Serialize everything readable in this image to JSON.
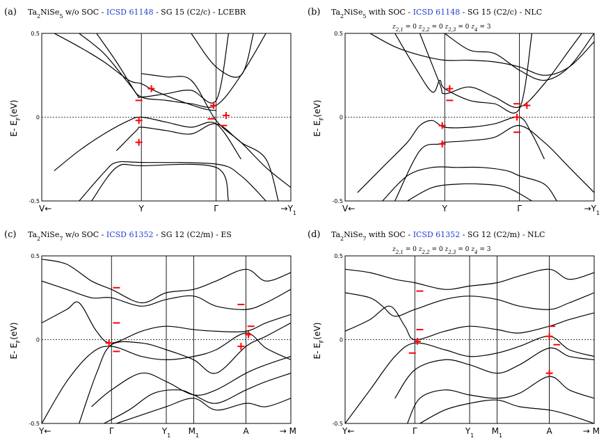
{
  "figure": {
    "y_axis_label": "E- E",
    "y_axis_sub": "F",
    "y_axis_unit": "(eV)"
  },
  "chart_data": [
    {
      "type": "line",
      "panel": "(a)",
      "title": {
        "pre": "Ta2NiSe5 w/o SOC - ",
        "link": "ICSD 61148",
        "post": " - SG 15 (C2/c) - LCEBR"
      },
      "subtitle": "",
      "ylim": [
        -0.5,
        0.5
      ],
      "yticks": [
        "0.5",
        "0",
        "-0.5"
      ],
      "kpath": [
        {
          "label": "V←",
          "x": 0
        },
        {
          "label": "Y",
          "x": 0.4
        },
        {
          "label": "Γ",
          "x": 0.7
        },
        {
          "label": "→Y₁",
          "x": 1.0
        }
      ],
      "series": [
        {
          "name": "band 1",
          "x": [
            0.05,
            0.15,
            0.25,
            0.35,
            0.4,
            0.45,
            0.55,
            0.65,
            0.7
          ],
          "y": [
            0.5,
            0.42,
            0.33,
            0.22,
            0.2,
            0.16,
            0.1,
            0.05,
            0.04
          ]
        },
        {
          "name": "band 2",
          "x": [
            0.15,
            0.25,
            0.35,
            0.4,
            0.5,
            0.6,
            0.7,
            0.8,
            0.9
          ],
          "y": [
            0.5,
            0.38,
            0.2,
            0.12,
            0.1,
            0.08,
            0.07,
            0.25,
            0.5
          ]
        },
        {
          "name": "band 3",
          "x": [
            0.22,
            0.3,
            0.38,
            0.4,
            0.5,
            0.6,
            0.7,
            0.75
          ],
          "y": [
            0.5,
            0.33,
            0.14,
            0.12,
            0.14,
            0.16,
            0.1,
            0.5
          ]
        },
        {
          "name": "band 4",
          "x": [
            0.4,
            0.5,
            0.6,
            0.7,
            0.8,
            0.9,
            1.0
          ],
          "y": [
            0.26,
            0.24,
            0.22,
            -0.02,
            -0.15,
            -0.3,
            -0.42
          ]
        },
        {
          "name": "band 5",
          "x": [
            0.05,
            0.15,
            0.25,
            0.35,
            0.4,
            0.5,
            0.6,
            0.7,
            0.8
          ],
          "y": [
            -0.32,
            -0.2,
            -0.1,
            -0.02,
            0.0,
            -0.03,
            -0.06,
            -0.04,
            -0.25
          ]
        },
        {
          "name": "band 6",
          "x": [
            0.3,
            0.38,
            0.4,
            0.5,
            0.6,
            0.7,
            0.8,
            0.9,
            0.95
          ],
          "y": [
            -0.2,
            -0.08,
            -0.06,
            -0.08,
            -0.1,
            -0.04,
            -0.15,
            -0.25,
            -0.5
          ]
        },
        {
          "name": "band 7",
          "x": [
            0.15,
            0.25,
            0.3,
            0.4,
            0.7,
            0.8,
            0.9
          ],
          "y": [
            -0.5,
            -0.33,
            -0.27,
            -0.27,
            -0.28,
            -0.35,
            -0.5
          ]
        },
        {
          "name": "band 8",
          "x": [
            0.2,
            0.3,
            0.4,
            0.7,
            0.75
          ],
          "y": [
            -0.5,
            -0.3,
            -0.29,
            -0.3,
            -0.5
          ]
        },
        {
          "name": "band 9",
          "x": [
            0.6,
            0.7,
            0.8,
            0.85
          ],
          "y": [
            0.5,
            0.3,
            0.25,
            0.5
          ]
        }
      ],
      "parity": [
        {
          "sign": "+",
          "x": 0.44,
          "y": 0.17
        },
        {
          "sign": "−",
          "x": 0.39,
          "y": 0.1
        },
        {
          "sign": "+",
          "x": 0.69,
          "y": 0.07
        },
        {
          "sign": "+",
          "x": 0.74,
          "y": 0.01
        },
        {
          "sign": "−",
          "x": 0.68,
          "y": -0.01
        },
        {
          "sign": "−",
          "x": 0.73,
          "y": -0.05
        },
        {
          "sign": "+",
          "x": 0.39,
          "y": -0.02
        },
        {
          "sign": "+",
          "x": 0.39,
          "y": -0.15
        }
      ]
    },
    {
      "type": "line",
      "panel": "(b)",
      "title": {
        "pre": "Ta2NiSe5 with SOC - ",
        "link": "ICSD 61148",
        "post": " - SG 15 (C2/c) - NLC"
      },
      "subtitle": "z2,1 = 0   z2,2 = 0   z2,3 = 0   z4 = 3",
      "ylim": [
        -0.5,
        0.5
      ],
      "yticks": [
        "0.5",
        "0",
        "-0.5"
      ],
      "kpath": [
        {
          "label": "V←",
          "x": 0
        },
        {
          "label": "Y",
          "x": 0.4
        },
        {
          "label": "Γ",
          "x": 0.7
        },
        {
          "label": "→Y₁",
          "x": 1.0
        }
      ],
      "series": [
        {
          "name": "band 1",
          "x": [
            0.2,
            0.28,
            0.35,
            0.38,
            0.4,
            0.5,
            0.6,
            0.7,
            0.75
          ],
          "y": [
            0.5,
            0.3,
            0.15,
            0.22,
            0.17,
            0.1,
            0.08,
            0.05,
            0.5
          ]
        },
        {
          "name": "band 2",
          "x": [
            0.3,
            0.38,
            0.4,
            0.5,
            0.6,
            0.7,
            0.8,
            0.9,
            0.95
          ],
          "y": [
            0.5,
            0.2,
            0.14,
            0.18,
            0.12,
            0.06,
            0.2,
            0.4,
            0.5
          ]
        },
        {
          "name": "band 3",
          "x": [
            0.4,
            0.5,
            0.6,
            0.7,
            0.8,
            0.9,
            1.0
          ],
          "y": [
            0.5,
            0.4,
            0.38,
            0.28,
            0.22,
            0.3,
            0.5
          ]
        },
        {
          "name": "band 4",
          "x": [
            0.1,
            0.2,
            0.3,
            0.4,
            0.5,
            0.6,
            0.7,
            0.8,
            0.9,
            1.0
          ],
          "y": [
            0.5,
            0.42,
            0.37,
            0.34,
            0.34,
            0.33,
            0.3,
            0.25,
            0.3,
            0.45
          ]
        },
        {
          "name": "band 5",
          "x": [
            0.05,
            0.15,
            0.25,
            0.3,
            0.35,
            0.4,
            0.5,
            0.6,
            0.7,
            0.75,
            0.8
          ],
          "y": [
            -0.45,
            -0.3,
            -0.15,
            -0.05,
            -0.02,
            -0.06,
            -0.06,
            -0.04,
            0.0,
            -0.1,
            -0.25
          ]
        },
        {
          "name": "band 6",
          "x": [
            0.2,
            0.3,
            0.38,
            0.4,
            0.5,
            0.6,
            0.7,
            0.8,
            0.9,
            1.0
          ],
          "y": [
            -0.5,
            -0.2,
            -0.16,
            -0.15,
            -0.14,
            -0.12,
            -0.05,
            -0.15,
            -0.3,
            -0.45
          ]
        },
        {
          "name": "band 7",
          "x": [
            0.15,
            0.25,
            0.35,
            0.45,
            0.55,
            0.65,
            0.7,
            0.8,
            0.85
          ],
          "y": [
            -0.5,
            -0.35,
            -0.3,
            -0.3,
            -0.3,
            -0.32,
            -0.35,
            -0.4,
            -0.5
          ]
        },
        {
          "name": "band 8",
          "x": [
            0.25,
            0.35,
            0.45,
            0.55,
            0.65,
            0.75
          ],
          "y": [
            -0.5,
            -0.42,
            -0.4,
            -0.4,
            -0.42,
            -0.5
          ]
        }
      ],
      "parity": [
        {
          "sign": "+",
          "x": 0.42,
          "y": 0.17
        },
        {
          "sign": "−",
          "x": 0.42,
          "y": 0.1
        },
        {
          "sign": "−",
          "x": 0.69,
          "y": 0.08
        },
        {
          "sign": "+",
          "x": 0.73,
          "y": 0.07
        },
        {
          "sign": "+",
          "x": 0.69,
          "y": 0.0
        },
        {
          "sign": "−",
          "x": 0.69,
          "y": -0.09
        },
        {
          "sign": "+",
          "x": 0.39,
          "y": -0.05
        },
        {
          "sign": "+",
          "x": 0.39,
          "y": -0.16
        }
      ]
    },
    {
      "type": "line",
      "panel": "(c)",
      "title": {
        "pre": "Ta2NiSe7 w/o SOC - ",
        "link": "ICSD 61352",
        "post": " - SG 12 (C2/m) - ES"
      },
      "subtitle": "",
      "ylim": [
        -0.5,
        0.5
      ],
      "yticks": [
        "0.5",
        "0",
        "-0.5"
      ],
      "kpath": [
        {
          "label": "Y←",
          "x": 0
        },
        {
          "label": "Γ",
          "x": 0.28
        },
        {
          "label": "Y₁",
          "x": 0.5
        },
        {
          "label": "M₁",
          "x": 0.61
        },
        {
          "label": "A",
          "x": 0.82
        },
        {
          "label": "→ M",
          "x": 1.0
        }
      ],
      "series": [
        {
          "name": "band 1",
          "x": [
            0.0,
            0.1,
            0.2,
            0.28,
            0.4,
            0.5,
            0.61,
            0.7,
            0.82,
            0.9,
            1.0
          ],
          "y": [
            0.48,
            0.45,
            0.35,
            0.3,
            0.22,
            0.28,
            0.3,
            0.35,
            0.42,
            0.35,
            0.4
          ]
        },
        {
          "name": "band 2",
          "x": [
            0.0,
            0.1,
            0.2,
            0.28,
            0.4,
            0.5,
            0.61,
            0.7,
            0.82,
            0.9,
            1.0
          ],
          "y": [
            0.35,
            0.3,
            0.25,
            0.25,
            0.2,
            0.24,
            0.26,
            0.2,
            0.18,
            0.22,
            0.3
          ]
        },
        {
          "name": "band 3",
          "x": [
            0.0,
            0.1,
            0.15,
            0.22,
            0.28,
            0.4,
            0.5,
            0.61,
            0.7,
            0.82,
            0.9,
            1.0
          ],
          "y": [
            0.1,
            0.18,
            0.22,
            0.05,
            -0.02,
            0.05,
            0.08,
            0.06,
            0.05,
            0.05,
            0.1,
            0.15
          ]
        },
        {
          "name": "band 4",
          "x": [
            0.0,
            0.1,
            0.2,
            0.28,
            0.4,
            0.5,
            0.61,
            0.7,
            0.82,
            0.9,
            1.0
          ],
          "y": [
            -0.5,
            -0.25,
            -0.08,
            -0.04,
            -0.1,
            -0.12,
            -0.1,
            -0.06,
            0.04,
            -0.05,
            -0.12
          ]
        },
        {
          "name": "band 5",
          "x": [
            0.15,
            0.22,
            0.28,
            0.4,
            0.5,
            0.61,
            0.7,
            0.82,
            0.9,
            1.0
          ],
          "y": [
            -0.5,
            -0.2,
            -0.03,
            -0.02,
            -0.06,
            -0.12,
            -0.2,
            -0.04,
            0.02,
            0.1
          ]
        },
        {
          "name": "band 6",
          "x": [
            0.2,
            0.28,
            0.4,
            0.5,
            0.61,
            0.7,
            0.82,
            0.9,
            1.0
          ],
          "y": [
            -0.4,
            -0.3,
            -0.2,
            -0.25,
            -0.33,
            -0.3,
            -0.2,
            -0.15,
            -0.1
          ]
        },
        {
          "name": "band 7",
          "x": [
            0.25,
            0.35,
            0.45,
            0.55,
            0.61,
            0.7,
            0.82,
            0.9,
            1.0
          ],
          "y": [
            -0.5,
            -0.42,
            -0.32,
            -0.3,
            -0.33,
            -0.38,
            -0.3,
            -0.25,
            -0.2
          ]
        },
        {
          "name": "band 8",
          "x": [
            0.3,
            0.4,
            0.5,
            0.61,
            0.7,
            0.82,
            0.9,
            1.0
          ],
          "y": [
            -0.5,
            -0.45,
            -0.4,
            -0.35,
            -0.42,
            -0.38,
            -0.4,
            -0.35
          ]
        }
      ],
      "parity": [
        {
          "sign": "−",
          "x": 0.3,
          "y": 0.31
        },
        {
          "sign": "−",
          "x": 0.3,
          "y": 0.1
        },
        {
          "sign": "+",
          "x": 0.27,
          "y": -0.02
        },
        {
          "sign": "−",
          "x": 0.3,
          "y": -0.07
        },
        {
          "sign": "−",
          "x": 0.8,
          "y": 0.21
        },
        {
          "sign": "−",
          "x": 0.84,
          "y": 0.08
        },
        {
          "sign": "+",
          "x": 0.83,
          "y": 0.03
        },
        {
          "sign": "+",
          "x": 0.8,
          "y": -0.04
        }
      ]
    },
    {
      "type": "line",
      "panel": "(d)",
      "title": {
        "pre": "Ta2NiSe7 with SOC - ",
        "link": "ICSD 61352",
        "post": " - SG 12 (C2/m) - NLC"
      },
      "subtitle": "z2,1 = 0   z2,2 = 0   z2,3 = 0   z4 = 3",
      "ylim": [
        -0.5,
        0.5
      ],
      "yticks": [
        "0.5",
        "0",
        "-0.5"
      ],
      "kpath": [
        {
          "label": "Y←",
          "x": 0
        },
        {
          "label": "Γ",
          "x": 0.28
        },
        {
          "label": "Y₁",
          "x": 0.5
        },
        {
          "label": "M₁",
          "x": 0.61
        },
        {
          "label": "A",
          "x": 0.82
        },
        {
          "label": "→ M",
          "x": 1.0
        }
      ],
      "series": [
        {
          "name": "band 1",
          "x": [
            0.0,
            0.1,
            0.2,
            0.28,
            0.4,
            0.5,
            0.61,
            0.7,
            0.82,
            0.9,
            1.0
          ],
          "y": [
            0.42,
            0.4,
            0.36,
            0.34,
            0.3,
            0.32,
            0.34,
            0.38,
            0.42,
            0.36,
            0.4
          ]
        },
        {
          "name": "band 2",
          "x": [
            0.0,
            0.1,
            0.15,
            0.2,
            0.28,
            0.4,
            0.5,
            0.61,
            0.7,
            0.82,
            0.9,
            1.0
          ],
          "y": [
            0.28,
            0.25,
            0.2,
            0.14,
            0.18,
            0.24,
            0.26,
            0.24,
            0.2,
            0.18,
            0.22,
            0.28
          ]
        },
        {
          "name": "band 3",
          "x": [
            0.0,
            0.1,
            0.18,
            0.24,
            0.28,
            0.4,
            0.5,
            0.61,
            0.7,
            0.82,
            0.9,
            1.0
          ],
          "y": [
            0.05,
            0.12,
            0.2,
            0.08,
            0.0,
            0.05,
            0.08,
            0.06,
            0.04,
            0.08,
            0.12,
            0.16
          ]
        },
        {
          "name": "band 4",
          "x": [
            0.0,
            0.1,
            0.2,
            0.28,
            0.4,
            0.5,
            0.61,
            0.7,
            0.82,
            0.9,
            1.0
          ],
          "y": [
            -0.5,
            -0.3,
            -0.1,
            -0.02,
            -0.06,
            -0.1,
            -0.08,
            -0.04,
            0.02,
            -0.06,
            -0.1
          ]
        },
        {
          "name": "band 5",
          "x": [
            0.2,
            0.28,
            0.4,
            0.5,
            0.61,
            0.7,
            0.82,
            0.9,
            1.0
          ],
          "y": [
            -0.35,
            -0.18,
            -0.12,
            -0.15,
            -0.2,
            -0.15,
            -0.05,
            -0.1,
            -0.12
          ]
        },
        {
          "name": "band 6",
          "x": [
            0.25,
            0.3,
            0.4,
            0.5,
            0.61,
            0.7,
            0.82,
            0.9,
            1.0
          ],
          "y": [
            -0.5,
            -0.35,
            -0.3,
            -0.33,
            -0.35,
            -0.32,
            -0.22,
            -0.3,
            -0.35
          ]
        },
        {
          "name": "band 7",
          "x": [
            0.3,
            0.4,
            0.5,
            0.61,
            0.7,
            0.82,
            0.9,
            1.0
          ],
          "y": [
            -0.5,
            -0.42,
            -0.38,
            -0.36,
            -0.4,
            -0.42,
            -0.45,
            -0.5
          ]
        }
      ],
      "parity": [
        {
          "sign": "−",
          "x": 0.3,
          "y": 0.29
        },
        {
          "sign": "−",
          "x": 0.3,
          "y": 0.06
        },
        {
          "sign": "+",
          "x": 0.29,
          "y": -0.01
        },
        {
          "sign": "−",
          "x": 0.27,
          "y": -0.08
        },
        {
          "sign": "−",
          "x": 0.83,
          "y": 0.08
        },
        {
          "sign": "+",
          "x": 0.82,
          "y": 0.02
        },
        {
          "sign": "−",
          "x": 0.85,
          "y": -0.03
        },
        {
          "sign": "+",
          "x": 0.82,
          "y": -0.2
        }
      ]
    }
  ]
}
